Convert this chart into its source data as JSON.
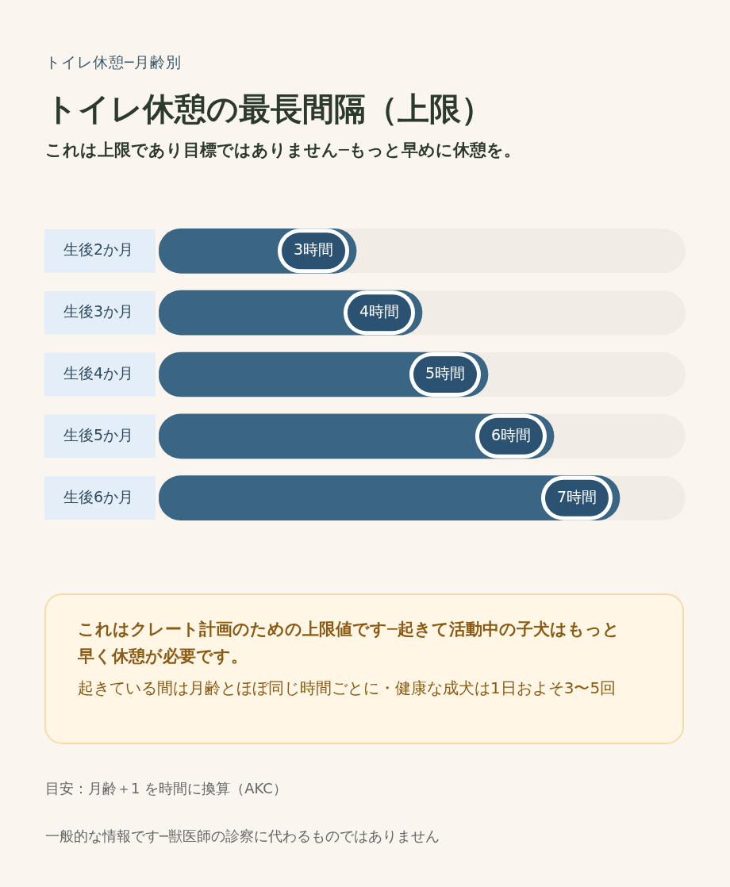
{
  "chart_data": {
    "type": "bar",
    "orientation": "horizontal",
    "title": "トイレ休憩の最長間隔（上限）",
    "subtitle": "これは上限であり目標ではありません─もっと早めに休憩を。",
    "categories": [
      "生後2か月",
      "生後3か月",
      "生後4か月",
      "生後5か月",
      "生後6か月"
    ],
    "values": [
      3,
      4,
      5,
      6,
      7
    ],
    "color": "#3a6683",
    "value_labels": [
      "3時間",
      "4時間",
      "5時間",
      "6時間",
      "7時間"
    ],
    "tick_labels": "y",
    "annotations": [
      "トイレ休憩─月齢別",
      "これはクレート計画のための上限値です─起きて活動中の子犬はもっと早く休憩が必要です。",
      "起きている間は月齢とほぼ同じ時間ごとに・健康な成犬は1日およそ3〜5回",
      "目安：月齢＋1 を時間に換算（AKC）",
      "一般的な情報です─獣医師の診察に代わるものではありません"
    ]
  }
}
